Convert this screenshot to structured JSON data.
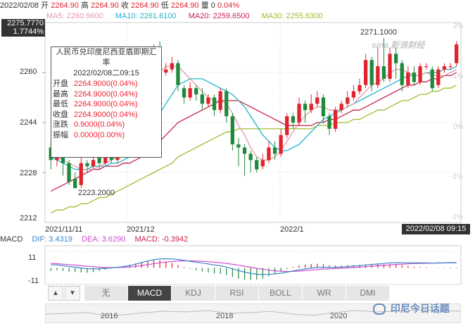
{
  "header": {
    "date": "2022/02/08",
    "open_label": "开",
    "open": "2264.90",
    "high_label": "高",
    "high": "2264.90",
    "close_label": "收",
    "close": "2264.90",
    "low_label": "低",
    "low": "2264.90",
    "volume_label": "量",
    "volume": "0",
    "change_pct": "0.04%"
  },
  "ma_legend": {
    "ma5": "MA5: 2260.9600",
    "ma10": "MA10: 2261.6100",
    "ma20": "MA20: 2259.6500",
    "ma30": "MA30: 2255.6300"
  },
  "current_box": {
    "price": "2275.7770",
    "pct": "1.7744%"
  },
  "date_box": "2022/02/08 09:15",
  "annotations": {
    "high_label": "2271.1000",
    "low_label": "2223.2000"
  },
  "y_labels": [
    "2260",
    "2244",
    "2228",
    "2212"
  ],
  "pct_labels": [
    "2%",
    "1%",
    "0%",
    "-1%"
  ],
  "pct_label_last": "-1%",
  "x_labels": [
    "2021/11/11",
    "2021/12",
    "2022/1"
  ],
  "tooltip": {
    "title": "人民币兑印度尼西亚盾即期汇率",
    "datetime": "2022/02/08二09:15",
    "rows": [
      {
        "k": "开盘",
        "v": "2264.9000(0.04%)"
      },
      {
        "k": "最高",
        "v": "2264.9000(0.04%)"
      },
      {
        "k": "最低",
        "v": "2264.9000(0.04%)"
      },
      {
        "k": "收盘",
        "v": "2264.9000(0.04%)"
      },
      {
        "k": "涨跌",
        "v": "0.9000(0.04%)"
      },
      {
        "k": "振幅",
        "v": "0.0000(0.00%)"
      }
    ]
  },
  "macd_legend": {
    "name": "MACD",
    "dif": "DIF: 3.4319",
    "dea": "DEA: 3.6290",
    "macd": "MACD: -0.3942"
  },
  "macd_axis": [
    "11",
    "-11"
  ],
  "tabs": {
    "prev": "▲",
    "next": "▼",
    "items": [
      "无",
      "MACD",
      "KDJ",
      "RSI",
      "BOLL",
      "WR",
      "DMI"
    ],
    "active": "MACD"
  },
  "navigator_years": [
    "2016",
    "2018",
    "2020"
  ],
  "watermark": "印尼今日话题",
  "sina_mark": "sina 新浪财经",
  "colors": {
    "up": "#e0242e",
    "down": "#1f8a3c",
    "ma5": "#e59aa8",
    "ma10": "#1fb5c9",
    "ma20": "#c8234a",
    "ma30": "#9bbd2e"
  },
  "chart_data": {
    "type": "candlestick",
    "title": "人民币兑印度尼西亚盾即期汇率",
    "ylim": [
      2212,
      2276
    ],
    "candles": [
      {
        "o": 2236,
        "c": 2232,
        "h": 2238,
        "l": 2229
      },
      {
        "o": 2232,
        "c": 2236,
        "h": 2237,
        "l": 2230
      },
      {
        "o": 2237,
        "c": 2231,
        "h": 2238,
        "l": 2227
      },
      {
        "o": 2231,
        "c": 2225,
        "h": 2232,
        "l": 2224
      },
      {
        "o": 2226,
        "c": 2223,
        "h": 2228,
        "l": 2223
      },
      {
        "o": 2224,
        "c": 2231,
        "h": 2233,
        "l": 2223
      },
      {
        "o": 2231,
        "c": 2230,
        "h": 2232,
        "l": 2228
      },
      {
        "o": 2230,
        "c": 2232,
        "h": 2234,
        "l": 2229
      },
      {
        "o": 2233,
        "c": 2231,
        "h": 2234,
        "l": 2229
      },
      {
        "o": 2231,
        "c": 2233,
        "h": 2234,
        "l": 2230
      },
      {
        "o": 2233,
        "c": 2232,
        "h": 2235,
        "l": 2231
      },
      {
        "o": 2232,
        "c": 2235,
        "h": 2236,
        "l": 2231
      },
      {
        "o": 2235,
        "c": 2236,
        "h": 2240,
        "l": 2233
      },
      {
        "o": 2236,
        "c": 2242,
        "h": 2243,
        "l": 2235
      },
      {
        "o": 2242,
        "c": 2250,
        "h": 2252,
        "l": 2241
      },
      {
        "o": 2250,
        "c": 2258,
        "h": 2260,
        "l": 2249
      },
      {
        "o": 2258,
        "c": 2262,
        "h": 2267,
        "l": 2256
      },
      {
        "o": 2263,
        "c": 2266,
        "h": 2269,
        "l": 2262
      },
      {
        "o": 2266,
        "c": 2260,
        "h": 2270,
        "l": 2258
      },
      {
        "o": 2260,
        "c": 2261,
        "h": 2263,
        "l": 2259
      },
      {
        "o": 2261,
        "c": 2263,
        "h": 2265,
        "l": 2260
      },
      {
        "o": 2263,
        "c": 2256,
        "h": 2264,
        "l": 2254
      },
      {
        "o": 2255,
        "c": 2252,
        "h": 2256,
        "l": 2250
      },
      {
        "o": 2252,
        "c": 2255,
        "h": 2257,
        "l": 2251
      },
      {
        "o": 2255,
        "c": 2253,
        "h": 2256,
        "l": 2251
      },
      {
        "o": 2253,
        "c": 2250,
        "h": 2255,
        "l": 2248
      },
      {
        "o": 2250,
        "c": 2252,
        "h": 2253,
        "l": 2249
      },
      {
        "o": 2252,
        "c": 2248,
        "h": 2253,
        "l": 2246
      },
      {
        "o": 2248,
        "c": 2254,
        "h": 2255,
        "l": 2247
      },
      {
        "o": 2254,
        "c": 2246,
        "h": 2255,
        "l": 2244
      },
      {
        "o": 2246,
        "c": 2237,
        "h": 2247,
        "l": 2235
      },
      {
        "o": 2237,
        "c": 2236,
        "h": 2239,
        "l": 2230
      },
      {
        "o": 2236,
        "c": 2234,
        "h": 2237,
        "l": 2227
      },
      {
        "o": 2234,
        "c": 2232,
        "h": 2235,
        "l": 2228
      },
      {
        "o": 2232,
        "c": 2229,
        "h": 2233,
        "l": 2228
      },
      {
        "o": 2230,
        "c": 2232,
        "h": 2234,
        "l": 2229
      },
      {
        "o": 2232,
        "c": 2236,
        "h": 2238,
        "l": 2231
      },
      {
        "o": 2236,
        "c": 2234,
        "h": 2238,
        "l": 2232
      },
      {
        "o": 2234,
        "c": 2240,
        "h": 2242,
        "l": 2233
      },
      {
        "o": 2240,
        "c": 2246,
        "h": 2247,
        "l": 2239
      },
      {
        "o": 2246,
        "c": 2244,
        "h": 2247,
        "l": 2242
      },
      {
        "o": 2244,
        "c": 2250,
        "h": 2252,
        "l": 2243
      },
      {
        "o": 2250,
        "c": 2248,
        "h": 2251,
        "l": 2244
      },
      {
        "o": 2248,
        "c": 2250,
        "h": 2253,
        "l": 2247
      },
      {
        "o": 2250,
        "c": 2252,
        "h": 2254,
        "l": 2249
      },
      {
        "o": 2252,
        "c": 2246,
        "h": 2253,
        "l": 2244
      },
      {
        "o": 2246,
        "c": 2242,
        "h": 2247,
        "l": 2240
      },
      {
        "o": 2242,
        "c": 2248,
        "h": 2249,
        "l": 2241
      },
      {
        "o": 2248,
        "c": 2250,
        "h": 2251,
        "l": 2247
      },
      {
        "o": 2250,
        "c": 2252,
        "h": 2254,
        "l": 2249
      },
      {
        "o": 2252,
        "c": 2254,
        "h": 2256,
        "l": 2251
      },
      {
        "o": 2254,
        "c": 2256,
        "h": 2258,
        "l": 2253
      },
      {
        "o": 2256,
        "c": 2264,
        "h": 2266,
        "l": 2255
      },
      {
        "o": 2264,
        "c": 2256,
        "h": 2265,
        "l": 2254
      },
      {
        "o": 2256,
        "c": 2262,
        "h": 2268,
        "l": 2255
      },
      {
        "o": 2262,
        "c": 2258,
        "h": 2271,
        "l": 2257
      },
      {
        "o": 2258,
        "c": 2266,
        "h": 2268,
        "l": 2257
      },
      {
        "o": 2266,
        "c": 2263,
        "h": 2268,
        "l": 2258
      },
      {
        "o": 2263,
        "c": 2256,
        "h": 2264,
        "l": 2254
      },
      {
        "o": 2256,
        "c": 2260,
        "h": 2262,
        "l": 2255
      },
      {
        "o": 2260,
        "c": 2257,
        "h": 2262,
        "l": 2256
      },
      {
        "o": 2257,
        "c": 2262,
        "h": 2263,
        "l": 2256
      },
      {
        "o": 2262,
        "c": 2262,
        "h": 2263,
        "l": 2261
      },
      {
        "o": 2261,
        "c": 2255,
        "h": 2262,
        "l": 2254
      },
      {
        "o": 2256,
        "c": 2261,
        "h": 2262,
        "l": 2255
      },
      {
        "o": 2261,
        "c": 2262,
        "h": 2263,
        "l": 2260
      },
      {
        "o": 2262,
        "c": 2262,
        "h": 2263,
        "l": 2261
      },
      {
        "o": 2263,
        "c": 2269,
        "h": 2270,
        "l": 2262
      }
    ],
    "ma5": [
      2234,
      2233,
      2232,
      2231,
      2230,
      2229,
      2229,
      2229,
      2230,
      2231,
      2232,
      2233,
      2234,
      2236,
      2239,
      2244,
      2250,
      2256,
      2260,
      2262,
      2262,
      2262,
      2260,
      2258,
      2256,
      2254,
      2252,
      2251,
      2251,
      2250,
      2247,
      2243,
      2240,
      2236,
      2233,
      2232,
      2232,
      2233,
      2235,
      2238,
      2241,
      2244,
      2246,
      2248,
      2249,
      2249,
      2248,
      2248,
      2248,
      2249,
      2250,
      2252,
      2254,
      2256,
      2257,
      2258,
      2260,
      2261,
      2261,
      2260,
      2259,
      2259,
      2260,
      2259,
      2259,
      2259,
      2260,
      2261
    ],
    "ma10": [
      2233,
      2232,
      2231,
      2230,
      2229,
      2229,
      2229,
      2230,
      2230,
      2230,
      2231,
      2231,
      2232,
      2233,
      2234,
      2237,
      2240,
      2244,
      2247,
      2250,
      2253,
      2256,
      2257,
      2258,
      2258,
      2258,
      2257,
      2256,
      2255,
      2254,
      2253,
      2251,
      2249,
      2246,
      2243,
      2240,
      2238,
      2236,
      2235,
      2235,
      2236,
      2237,
      2239,
      2241,
      2243,
      2245,
      2246,
      2247,
      2248,
      2249,
      2250,
      2251,
      2252,
      2253,
      2254,
      2255,
      2256,
      2257,
      2258,
      2259,
      2259,
      2259,
      2260,
      2260,
      2260,
      2261,
      2261,
      2262
    ],
    "ma20": [
      2222,
      2223,
      2224,
      2225,
      2226,
      2227,
      2228,
      2229,
      2229,
      2230,
      2230,
      2230,
      2231,
      2231,
      2232,
      2233,
      2234,
      2236,
      2238,
      2240,
      2242,
      2244,
      2245,
      2246,
      2247,
      2248,
      2249,
      2250,
      2251,
      2251,
      2251,
      2251,
      2250,
      2249,
      2248,
      2247,
      2246,
      2245,
      2244,
      2243,
      2243,
      2243,
      2243,
      2243,
      2244,
      2244,
      2245,
      2245,
      2246,
      2247,
      2248,
      2248,
      2249,
      2250,
      2251,
      2252,
      2253,
      2254,
      2255,
      2256,
      2256,
      2257,
      2257,
      2258,
      2258,
      2259,
      2259,
      2260
    ],
    "ma30": [
      2215,
      2216,
      2216,
      2217,
      2217,
      2218,
      2218,
      2219,
      2220,
      2220,
      2221,
      2222,
      2223,
      2224,
      2225,
      2226,
      2227,
      2228,
      2229,
      2230,
      2231,
      2233,
      2234,
      2235,
      2236,
      2237,
      2238,
      2239,
      2240,
      2241,
      2241,
      2242,
      2242,
      2242,
      2242,
      2242,
      2242,
      2242,
      2242,
      2242,
      2242,
      2242,
      2242,
      2242,
      2243,
      2243,
      2243,
      2244,
      2244,
      2244,
      2245,
      2245,
      2246,
      2247,
      2248,
      2248,
      2249,
      2250,
      2251,
      2251,
      2252,
      2253,
      2253,
      2254,
      2254,
      2255,
      2255,
      2256
    ],
    "macd": {
      "ylim": [
        -11,
        11
      ],
      "dif": [
        2,
        2,
        1.5,
        1,
        0.5,
        0,
        -0.5,
        -0.6,
        -0.5,
        -0.3,
        0,
        0.4,
        0.9,
        1.6,
        2.5,
        3.5,
        4.6,
        5.5,
        6,
        6.1,
        6,
        5.6,
        5,
        4.4,
        3.8,
        3.2,
        2.6,
        2,
        1.4,
        0.6,
        -0.6,
        -1.8,
        -2.8,
        -3.6,
        -4.2,
        -4.4,
        -4.3,
        -4,
        -3.5,
        -2.8,
        -2,
        -1.3,
        -0.7,
        -0.2,
        0.3,
        0.4,
        0.3,
        0.4,
        0.6,
        0.9,
        1.2,
        1.5,
        2,
        2.3,
        2.6,
        2.9,
        3.3,
        3.5,
        3.4,
        3.4,
        3.3,
        3.3,
        3.3,
        3.2,
        3.2,
        3.3,
        3.3,
        3.4
      ],
      "dea": [
        3,
        2.8,
        2.5,
        2.2,
        1.9,
        1.5,
        1.1,
        0.8,
        0.5,
        0.3,
        0.2,
        0.3,
        0.4,
        0.6,
        1,
        1.6,
        2.2,
        2.8,
        3.4,
        3.9,
        4.3,
        4.6,
        4.7,
        4.7,
        4.6,
        4.4,
        4.1,
        3.8,
        3.4,
        3,
        2.4,
        1.8,
        1.1,
        0.4,
        -0.3,
        -0.9,
        -1.5,
        -1.9,
        -2.2,
        -2.4,
        -2.3,
        -2.1,
        -1.8,
        -1.5,
        -1.1,
        -0.8,
        -0.6,
        -0.4,
        -0.2,
        0,
        0.2,
        0.5,
        0.8,
        1.1,
        1.4,
        1.7,
        2,
        2.3,
        2.5,
        2.7,
        2.9,
        3,
        3.1,
        3.2,
        3.3,
        3.4,
        3.5,
        3.6
      ],
      "hist": [
        -2,
        -1.6,
        -2,
        -2.4,
        -2.8,
        -3,
        -3.2,
        -2.8,
        -2,
        -1.2,
        -0.4,
        0.2,
        1,
        2,
        3,
        3.8,
        4.8,
        5.4,
        5.2,
        4.4,
        3.4,
        2,
        0.6,
        -0.6,
        -1.6,
        -2.4,
        -3,
        -3.6,
        -4,
        -4.8,
        -6,
        -7.2,
        -7.8,
        -8,
        -7.8,
        -7,
        -5.6,
        -4.2,
        -2.6,
        -0.8,
        0.6,
        1.6,
        2.2,
        2.6,
        2.8,
        2.4,
        1.8,
        1.6,
        1.6,
        1.8,
        2,
        2,
        2.4,
        2.4,
        2.4,
        2.4,
        2.6,
        2.4,
        1.8,
        1.4,
        0.8,
        0.6,
        0.4,
        0,
        -0.2,
        -0.2,
        -0.4,
        -0.4
      ]
    }
  }
}
